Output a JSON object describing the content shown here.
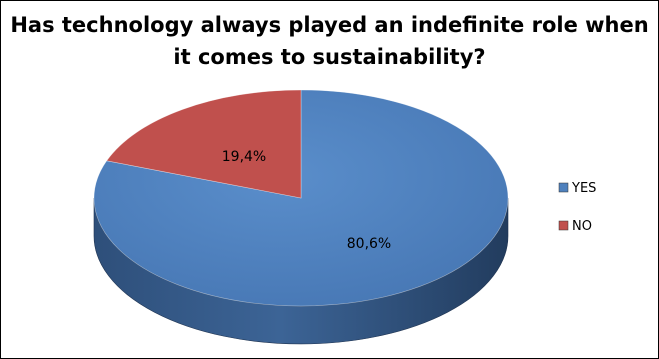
{
  "chart_data": {
    "type": "pie",
    "title": "Has technology always played an indefinite role when it comes to sustainability?",
    "slices": [
      {
        "name": "YES",
        "value": 80.6,
        "label": "80,6%",
        "color": "#4F81BD"
      },
      {
        "name": "NO",
        "value": 19.4,
        "label": "19,4%",
        "color": "#C0504D"
      }
    ],
    "legend_position": "right",
    "style": "3d"
  }
}
